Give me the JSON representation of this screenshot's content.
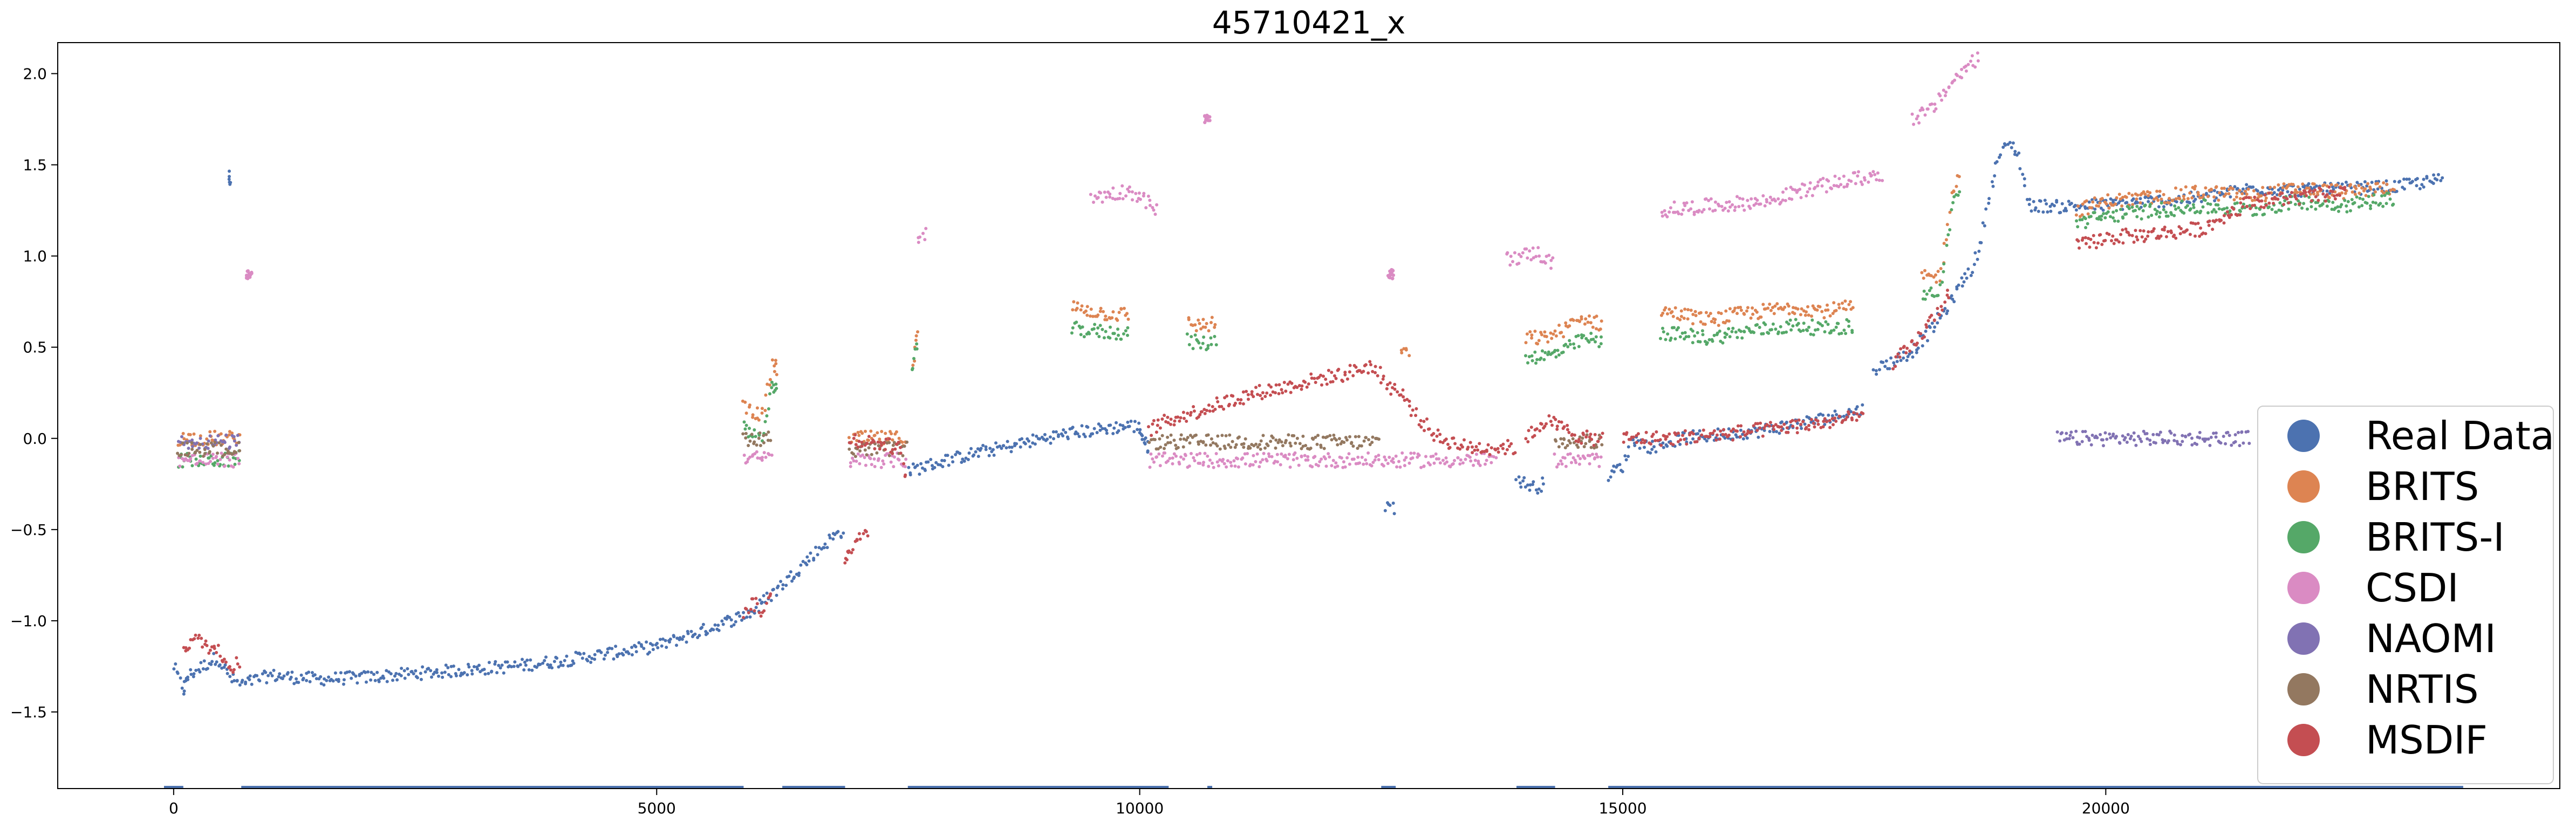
{
  "chart_data": {
    "type": "scatter",
    "title": "45710421_x",
    "xlim": [
      -1200,
      24700
    ],
    "ylim": [
      -1.92,
      2.17
    ],
    "xticks": [
      0,
      5000,
      10000,
      15000,
      20000
    ],
    "yticks": [
      -1.5,
      -1.0,
      -0.5,
      0.0,
      0.5,
      1.0,
      1.5,
      2.0
    ],
    "xtick_labels": [
      "0",
      "5000",
      "10000",
      "15000",
      "20000"
    ],
    "ytick_labels": [
      "−1.5",
      "−1.0",
      "−0.5",
      "0.0",
      "0.5",
      "1.0",
      "1.5",
      "2.0"
    ],
    "legend_placement": "lower-right",
    "grid": false,
    "series": [
      {
        "name": "Real Data",
        "color": "#4c72b0",
        "segments": [
          {
            "x": [
              0,
              100,
              150,
              300,
              450,
              600,
              700,
              1000,
              1500,
              2000,
              2500,
              3000,
              3500,
              4000,
              4500,
              5000,
              5500,
              5900,
              6000,
              6200,
              6400,
              6600,
              6800,
              6950
            ],
            "y": [
              -1.25,
              -1.38,
              -1.3,
              -1.25,
              -1.2,
              -1.32,
              -1.35,
              -1.3,
              -1.32,
              -1.31,
              -1.29,
              -1.27,
              -1.25,
              -1.22,
              -1.18,
              -1.14,
              -1.05,
              -0.97,
              -0.95,
              -0.85,
              -0.75,
              -0.65,
              -0.55,
              -0.5
            ]
          },
          {
            "x": [
              7600,
              7800,
              8000,
              8300,
              8600,
              9000,
              9300,
              9600,
              9900,
              10000,
              10050,
              10100
            ],
            "y": [
              -0.18,
              -0.15,
              -0.12,
              -0.08,
              -0.05,
              0.0,
              0.03,
              0.05,
              0.07,
              0.06,
              -0.02,
              -0.05
            ]
          },
          {
            "x": [
              12550,
              12650
            ],
            "y": [
              -0.37,
              -0.38
            ]
          },
          {
            "x": [
              13900,
              14000,
              14100,
              14200
            ],
            "y": [
              -0.22,
              -0.25,
              -0.27,
              -0.24
            ]
          },
          {
            "x": [
              14850,
              15000,
              15100,
              15300,
              15600,
              16000,
              16400,
              16800,
              17200,
              17500
            ],
            "y": [
              -0.2,
              -0.15,
              0.0,
              -0.05,
              0.0,
              0.02,
              0.04,
              0.08,
              0.12,
              0.16
            ]
          },
          {
            "x": [
              17600,
              17800,
              18000,
              18200,
              18400,
              18500,
              18600,
              18700,
              18800,
              18900,
              19000,
              19100,
              19200,
              19500,
              20000,
              20500,
              21000,
              21500,
              22000,
              22500,
              23000,
              23500
            ],
            "y": [
              0.38,
              0.42,
              0.48,
              0.6,
              0.75,
              0.85,
              0.92,
              1.05,
              1.35,
              1.55,
              1.62,
              1.55,
              1.28,
              1.27,
              1.28,
              1.3,
              1.32,
              1.37,
              1.36,
              1.37,
              1.38,
              1.42
            ]
          },
          {
            "x": [
              570,
              590
            ],
            "y": [
              1.45,
              1.38
            ]
          }
        ]
      },
      {
        "name": "BRITS",
        "color": "#dd8452",
        "segments": [
          {
            "x": [
              50,
              300,
              600,
              700
            ],
            "y": [
              0.0,
              0.0,
              0.0,
              0.02
            ]
          },
          {
            "x": [
              5900,
              6000,
              6100,
              6200,
              6250
            ],
            "y": [
              0.18,
              0.15,
              0.12,
              0.4,
              0.38
            ]
          },
          {
            "x": [
              7000,
              7300,
              7600
            ],
            "y": [
              0.0,
              0.0,
              0.0
            ]
          },
          {
            "x": [
              7650,
              7700
            ],
            "y": [
              0.4,
              0.62
            ]
          },
          {
            "x": [
              9300,
              9700,
              9900
            ],
            "y": [
              0.72,
              0.68,
              0.68
            ]
          },
          {
            "x": [
              10500,
              10600,
              10700,
              10800
            ],
            "y": [
              0.64,
              0.62,
              0.62,
              0.63
            ]
          },
          {
            "x": [
              12700,
              12800
            ],
            "y": [
              0.48,
              0.45
            ]
          },
          {
            "x": [
              14000,
              14200,
              14400,
              14600,
              14800
            ],
            "y": [
              0.55,
              0.55,
              0.6,
              0.66,
              0.62
            ]
          },
          {
            "x": [
              15400,
              15900,
              16200,
              16500,
              16800,
              17100,
              17400
            ],
            "y": [
              0.7,
              0.65,
              0.68,
              0.7,
              0.72,
              0.7,
              0.72
            ]
          },
          {
            "x": [
              18100,
              18200,
              18300,
              18400,
              18500
            ],
            "y": [
              0.88,
              0.88,
              0.9,
              1.35,
              1.45
            ]
          },
          {
            "x": [
              19700,
              20000,
              20500,
              21000,
              21500,
              22000,
              22500,
              23000
            ],
            "y": [
              1.25,
              1.3,
              1.32,
              1.35,
              1.33,
              1.37,
              1.35,
              1.38
            ]
          }
        ]
      },
      {
        "name": "BRITS-I",
        "color": "#55a868",
        "segments": [
          {
            "x": [
              50,
              300,
              600,
              700
            ],
            "y": [
              -0.12,
              -0.12,
              -0.12,
              -0.08
            ]
          },
          {
            "x": [
              5900,
              6000,
              6100,
              6200,
              6250
            ],
            "y": [
              0.05,
              0.03,
              0.02,
              0.3,
              0.28
            ]
          },
          {
            "x": [
              7650,
              7700
            ],
            "y": [
              0.35,
              0.55
            ]
          },
          {
            "x": [
              9300,
              9700,
              9900
            ],
            "y": [
              0.6,
              0.58,
              0.58
            ]
          },
          {
            "x": [
              10500,
              10600,
              10700,
              10800
            ],
            "y": [
              0.54,
              0.52,
              0.52,
              0.54
            ]
          },
          {
            "x": [
              14000,
              14200,
              14400,
              14600,
              14800
            ],
            "y": [
              0.45,
              0.45,
              0.48,
              0.55,
              0.52
            ]
          },
          {
            "x": [
              15400,
              15900,
              16200,
              16500,
              16800,
              17100,
              17400
            ],
            "y": [
              0.58,
              0.55,
              0.58,
              0.6,
              0.62,
              0.6,
              0.62
            ]
          },
          {
            "x": [
              18100,
              18200,
              18300,
              18400,
              18500
            ],
            "y": [
              0.78,
              0.8,
              0.82,
              1.25,
              1.4
            ]
          },
          {
            "x": [
              19700,
              20000,
              20500,
              21000,
              21500,
              22000,
              22500,
              23000
            ],
            "y": [
              1.18,
              1.22,
              1.25,
              1.27,
              1.25,
              1.3,
              1.28,
              1.32
            ]
          }
        ]
      },
      {
        "name": "CSDI",
        "color": "#da8bc3",
        "segments": [
          {
            "x": [
              50,
              300,
              600,
              700
            ],
            "y": [
              -0.12,
              -0.12,
              -0.12,
              -0.12
            ]
          },
          {
            "x": [
              780
            ],
            "y": [
              0.9
            ]
          },
          {
            "x": [
              5900,
              6000,
              6100,
              6200
            ],
            "y": [
              -0.1,
              -0.11,
              -0.11,
              -0.11
            ]
          },
          {
            "x": [
              7000,
              7300,
              7600
            ],
            "y": [
              -0.12,
              -0.12,
              -0.12
            ]
          },
          {
            "x": [
              7700,
              7800
            ],
            "y": [
              1.1,
              1.12
            ]
          },
          {
            "x": [
              9500,
              9900,
              10200
            ],
            "y": [
              1.32,
              1.36,
              1.25
            ]
          },
          {
            "x": [
              10700
            ],
            "y": [
              1.75
            ]
          },
          {
            "x": [
              10100,
              10500,
              11000,
              11500,
              12000,
              12500,
              12900,
              13300,
              13700
            ],
            "y": [
              -0.12,
              -0.12,
              -0.12,
              -0.12,
              -0.12,
              -0.12,
              -0.12,
              -0.12,
              -0.12
            ]
          },
          {
            "x": [
              12600
            ],
            "y": [
              0.9
            ]
          },
          {
            "x": [
              13800,
              14100,
              14300
            ],
            "y": [
              0.98,
              1.02,
              0.95
            ]
          },
          {
            "x": [
              14300,
              14600,
              14800
            ],
            "y": [
              -0.12,
              -0.12,
              -0.12
            ]
          },
          {
            "x": [
              15400,
              16000,
              16500,
              16800,
              17200,
              17700
            ],
            "y": [
              1.25,
              1.28,
              1.3,
              1.35,
              1.4,
              1.45
            ]
          },
          {
            "x": [
              18000,
              18200,
              18400,
              18700
            ],
            "y": [
              1.75,
              1.8,
              1.95,
              2.1
            ]
          }
        ]
      },
      {
        "name": "NAOMI",
        "color": "#8172b3",
        "segments": [
          {
            "x": [
              50,
              300,
              600,
              700
            ],
            "y": [
              -0.02,
              -0.02,
              -0.02,
              -0.02
            ]
          },
          {
            "x": [
              19500,
              20000,
              20500,
              21000,
              21500
            ],
            "y": [
              0.0,
              0.0,
              0.0,
              0.0,
              0.0
            ]
          }
        ]
      },
      {
        "name": "NRTIS",
        "color": "#937860",
        "segments": [
          {
            "x": [
              50,
              300,
              600,
              700
            ],
            "y": [
              -0.06,
              -0.06,
              -0.06,
              -0.06
            ]
          },
          {
            "x": [
              5900,
              6000,
              6100,
              6200
            ],
            "y": [
              0.0,
              0.0,
              0.0,
              0.0
            ]
          },
          {
            "x": [
              7000,
              7300,
              7600
            ],
            "y": [
              -0.06,
              -0.06,
              -0.06
            ]
          },
          {
            "x": [
              10100,
              10500,
              11000,
              11500,
              12000,
              12500
            ],
            "y": [
              -0.02,
              -0.02,
              -0.02,
              -0.02,
              -0.02,
              -0.02
            ]
          },
          {
            "x": [
              14300,
              14600,
              14800
            ],
            "y": [
              -0.02,
              -0.02,
              -0.02
            ]
          }
        ]
      },
      {
        "name": "MSDIF",
        "color": "#c44e52",
        "segments": [
          {
            "x": [
              100,
              200,
              300,
              400,
              500,
              600,
              700
            ],
            "y": [
              -1.15,
              -1.1,
              -1.12,
              -1.15,
              -1.18,
              -1.25,
              -1.22
            ]
          },
          {
            "x": [
              5900,
              6000,
              6100,
              6200
            ],
            "y": [
              -0.95,
              -0.9,
              -0.95,
              -0.85
            ]
          },
          {
            "x": [
              6950,
              7000,
              7100,
              7200
            ],
            "y": [
              -0.65,
              -0.6,
              -0.55,
              -0.5
            ]
          },
          {
            "x": [
              7000,
              7200,
              7500,
              7600
            ],
            "y": [
              0.0,
              -0.02,
              -0.05,
              -0.25
            ]
          },
          {
            "x": [
              10100,
              10300,
              10600,
              10900,
              11200,
              11500,
              11800,
              12100,
              12400,
              12600,
              12700,
              12900,
              13100,
              13400,
              13700,
              13900
            ],
            "y": [
              0.05,
              0.1,
              0.15,
              0.2,
              0.25,
              0.28,
              0.32,
              0.35,
              0.4,
              0.28,
              0.25,
              0.1,
              0.0,
              -0.05,
              -0.05,
              -0.05
            ]
          },
          {
            "x": [
              14000,
              14200,
              14400,
              14600,
              14800
            ],
            "y": [
              0.0,
              0.1,
              0.05,
              0.0,
              0.0
            ]
          },
          {
            "x": [
              15000,
              15500,
              16000,
              16500,
              17000,
              17500
            ],
            "y": [
              0.0,
              0.0,
              0.02,
              0.05,
              0.08,
              0.12
            ]
          },
          {
            "x": [
              17800,
              18000,
              18200,
              18400
            ],
            "y": [
              0.42,
              0.5,
              0.65,
              0.8
            ]
          },
          {
            "x": [
              19700,
              20000,
              20500,
              21000,
              21500,
              22000,
              22500
            ],
            "y": [
              1.05,
              1.1,
              1.12,
              1.15,
              1.3,
              1.32,
              1.35
            ]
          }
        ]
      }
    ],
    "availability_markers": {
      "color": "#4c72b0",
      "y": -1.92,
      "ranges": [
        [
          -100,
          100
        ],
        [
          700,
          5900
        ],
        [
          6300,
          6950
        ],
        [
          7600,
          10300
        ],
        [
          10700,
          10750
        ],
        [
          12500,
          12650
        ],
        [
          13900,
          14300
        ],
        [
          14850,
          23700
        ]
      ]
    }
  }
}
